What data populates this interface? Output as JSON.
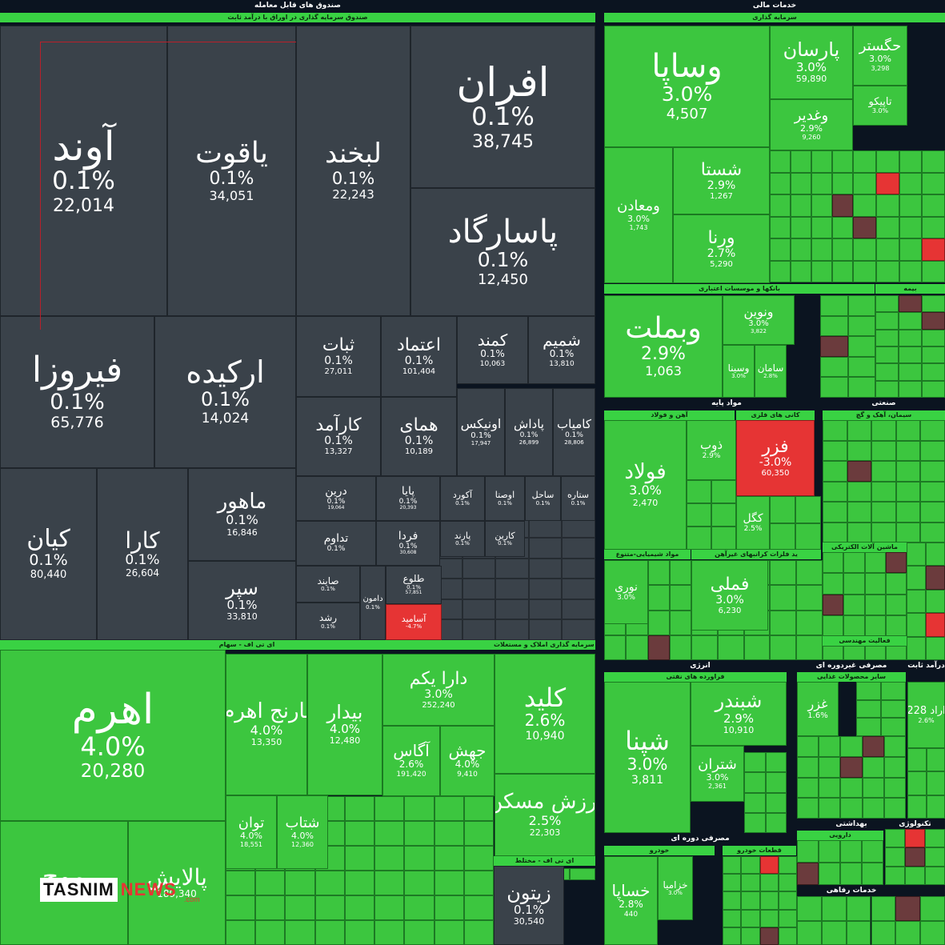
{
  "chart_data": {
    "type": "treemap",
    "groups": [
      {
        "name": "صندوق های قابل معامله",
        "subgroups": [
          "صندوق سرمایه گذاری در اوراق با درآمد ثابت",
          "ای تی اف - سهام",
          "ق سرمایه گذاری املاک و مستغلات",
          "ای تی اف - مختلط"
        ]
      },
      {
        "name": "خدمات مالی",
        "subgroups": [
          "سرمایه گذاری",
          "بانکها و موسسات اعتباری",
          "بیمه"
        ]
      },
      {
        "name": "مواد پایه",
        "subgroups": [
          "آهن و فولاد",
          "کانی های فلزی",
          "مواد شیمیایی-متنوع",
          "ید فلزات کرانبهای غیرآهن"
        ]
      },
      {
        "name": "صنعتی",
        "subgroups": [
          "سیمان، آهک و گچ",
          "ماشین آلات الکتریکی",
          "فعالیت مهندسی"
        ]
      },
      {
        "name": "انرژی",
        "subgroups": [
          "فراورده های نفتی"
        ]
      },
      {
        "name": "مصرفی غیردوره ای",
        "subgroups": [
          "سایر محصولات غذایی"
        ]
      },
      {
        "name": "مصرفی دوره ای",
        "subgroups": [
          "خودرو",
          "قطعات خودرو"
        ]
      },
      {
        "name": "بهداشتی",
        "subgroups": [
          "دارویی"
        ]
      },
      {
        "name": "تکنولوژی",
        "subgroups": []
      },
      {
        "name": "خدمات رفاهی",
        "subgroups": []
      },
      {
        "name": "درآمد ثابت",
        "subgroups": []
      }
    ],
    "tiles": [
      {
        "name": "آوند",
        "change": "0.1%",
        "value": "22,014",
        "status": "neutral"
      },
      {
        "name": "یاقوت",
        "change": "0.1%",
        "value": "34,051",
        "status": "neutral"
      },
      {
        "name": "لبخند",
        "change": "0.1%",
        "value": "22,243",
        "status": "neutral"
      },
      {
        "name": "افران",
        "change": "0.1%",
        "value": "38,745",
        "status": "neutral"
      },
      {
        "name": "پاسارگاد",
        "change": "0.1%",
        "value": "12,450",
        "status": "neutral"
      },
      {
        "name": "فیروزا",
        "change": "0.1%",
        "value": "65,776",
        "status": "neutral"
      },
      {
        "name": "ارکیده",
        "change": "0.1%",
        "value": "14,024",
        "status": "neutral"
      },
      {
        "name": "ثبات",
        "change": "0.1%",
        "value": "27,011",
        "status": "neutral"
      },
      {
        "name": "اعتماد",
        "change": "0.1%",
        "value": "101,404",
        "status": "neutral"
      },
      {
        "name": "کمند",
        "change": "0.1%",
        "value": "10,063",
        "status": "neutral"
      },
      {
        "name": "شمیم",
        "change": "0.1%",
        "value": "13,810",
        "status": "neutral"
      },
      {
        "name": "کارآمد",
        "change": "0.1%",
        "value": "13,327",
        "status": "neutral"
      },
      {
        "name": "همای",
        "change": "0.1%",
        "value": "10,189",
        "status": "neutral"
      },
      {
        "name": "اونیکس",
        "change": "0.1%",
        "value": "17,947",
        "status": "neutral"
      },
      {
        "name": "پاداش",
        "change": "0.1%",
        "value": "26,899",
        "status": "neutral"
      },
      {
        "name": "کامیاب",
        "change": "0.1%",
        "value": "28,806",
        "status": "neutral"
      },
      {
        "name": "ماهور",
        "change": "0.1%",
        "value": "16,846",
        "status": "neutral"
      },
      {
        "name": "کیان",
        "change": "0.1%",
        "value": "80,440",
        "status": "neutral"
      },
      {
        "name": "کارا",
        "change": "0.1%",
        "value": "26,604",
        "status": "neutral"
      },
      {
        "name": "سپر",
        "change": "0.1%",
        "value": "33,810",
        "status": "neutral"
      },
      {
        "name": "درین",
        "change": "0.1%",
        "value": "19,064",
        "status": "neutral"
      },
      {
        "name": "پایا",
        "change": "0.1%",
        "value": "20,393",
        "status": "neutral"
      },
      {
        "name": "آکورد",
        "change": "0.1%",
        "value": "",
        "status": "neutral"
      },
      {
        "name": "اوصتا",
        "change": "0.1%",
        "value": "",
        "status": "neutral"
      },
      {
        "name": "ساحل",
        "change": "0.1%",
        "value": "",
        "status": "neutral"
      },
      {
        "name": "ستاره",
        "change": "0.1%",
        "value": "",
        "status": "neutral"
      },
      {
        "name": "تداوم",
        "change": "0.1%",
        "value": "",
        "status": "neutral"
      },
      {
        "name": "فردا",
        "change": "0.1%",
        "value": "30,608",
        "status": "neutral"
      },
      {
        "name": "پارند",
        "change": "0.1%",
        "value": "",
        "status": "neutral"
      },
      {
        "name": "کارین",
        "change": "0.1%",
        "value": "",
        "status": "neutral"
      },
      {
        "name": "صایند",
        "change": "0.1%",
        "value": "",
        "status": "neutral"
      },
      {
        "name": "دامون",
        "change": "0.1%",
        "value": "",
        "status": "neutral"
      },
      {
        "name": "طلوع",
        "change": "0.1%",
        "value": "57,851",
        "status": "neutral"
      },
      {
        "name": "رشد",
        "change": "0.1%",
        "value": "",
        "status": "neutral"
      },
      {
        "name": "آسامید",
        "change": "-4.7%",
        "value": "",
        "status": "down"
      },
      {
        "name": "اهرم",
        "change": "4.0%",
        "value": "20,280",
        "status": "up"
      },
      {
        "name": "نارنج اهرم",
        "change": "4.0%",
        "value": "13,350",
        "status": "up"
      },
      {
        "name": "بیدار",
        "change": "4.0%",
        "value": "12,480",
        "status": "up"
      },
      {
        "name": "دارا یکم",
        "change": "3.0%",
        "value": "252,240",
        "status": "up"
      },
      {
        "name": "آگاس",
        "change": "2.6%",
        "value": "191,420",
        "status": "up"
      },
      {
        "name": "جهش",
        "change": "4.0%",
        "value": "9,410",
        "status": "up"
      },
      {
        "name": "کلید",
        "change": "2.6%",
        "value": "10,940",
        "status": "up"
      },
      {
        "name": "ارزش مسکن",
        "change": "2.5%",
        "value": "22,303",
        "status": "up"
      },
      {
        "name": "توان",
        "change": "4.0%",
        "value": "18,551",
        "status": "up"
      },
      {
        "name": "شتاب",
        "change": "4.0%",
        "value": "12,360",
        "status": "up"
      },
      {
        "name": "موج",
        "change": "",
        "value": "19,902",
        "status": "up"
      },
      {
        "name": "پالایش",
        "change": "",
        "value": "189,340",
        "status": "up"
      },
      {
        "name": "زیتون",
        "change": "0.1%",
        "value": "30,540",
        "status": "neutral"
      },
      {
        "name": "وساپا",
        "change": "3.0%",
        "value": "4,507",
        "status": "up"
      },
      {
        "name": "پارسان",
        "change": "3.0%",
        "value": "59,890",
        "status": "up"
      },
      {
        "name": "وغدیر",
        "change": "2.9%",
        "value": "9,260",
        "status": "up"
      },
      {
        "name": "حگستر",
        "change": "3.0%",
        "value": "3,298",
        "status": "up"
      },
      {
        "name": "تاپیکو",
        "change": "3.0%",
        "value": "",
        "status": "up"
      },
      {
        "name": "ومعادن",
        "change": "3.0%",
        "value": "1,743",
        "status": "up"
      },
      {
        "name": "شستا",
        "change": "2.9%",
        "value": "1,267",
        "status": "up"
      },
      {
        "name": "ورنا",
        "change": "2.7%",
        "value": "5,290",
        "status": "up"
      },
      {
        "name": "وبملت",
        "change": "2.9%",
        "value": "1,063",
        "status": "up"
      },
      {
        "name": "ونوین",
        "change": "3.0%",
        "value": "3,822",
        "status": "up"
      },
      {
        "name": "وسینا",
        "change": "3.0%",
        "value": "",
        "status": "up"
      },
      {
        "name": "سامان",
        "change": "2.8%",
        "value": "",
        "status": "up"
      },
      {
        "name": "فولاد",
        "change": "3.0%",
        "value": "2,470",
        "status": "up"
      },
      {
        "name": "ذوب",
        "change": "2.9%",
        "value": "",
        "status": "up"
      },
      {
        "name": "فزر",
        "change": "-3.0%",
        "value": "60,350",
        "status": "down"
      },
      {
        "name": "کگل",
        "change": "2.5%",
        "value": "",
        "status": "up"
      },
      {
        "name": "نوری",
        "change": "3.0%",
        "value": "",
        "status": "up"
      },
      {
        "name": "فملی",
        "change": "3.0%",
        "value": "6,230",
        "status": "up"
      },
      {
        "name": "شپنا",
        "change": "3.0%",
        "value": "3,811",
        "status": "up"
      },
      {
        "name": "شبندر",
        "change": "2.9%",
        "value": "10,910",
        "status": "up"
      },
      {
        "name": "شتران",
        "change": "3.0%",
        "value": "2,361",
        "status": "up"
      },
      {
        "name": "خساپا",
        "change": "2.8%",
        "value": "440",
        "status": "up"
      },
      {
        "name": "خزامیا",
        "change": "3.0%",
        "value": "",
        "status": "up"
      },
      {
        "name": "غزر",
        "change": "1.6%",
        "value": "",
        "status": "up"
      },
      {
        "name": "اراد 228",
        "change": "2.6%",
        "value": "",
        "status": "up"
      }
    ]
  },
  "logo": {
    "tasnim": "TASNIM",
    "news": "NEWS",
    "domain": ".com"
  }
}
